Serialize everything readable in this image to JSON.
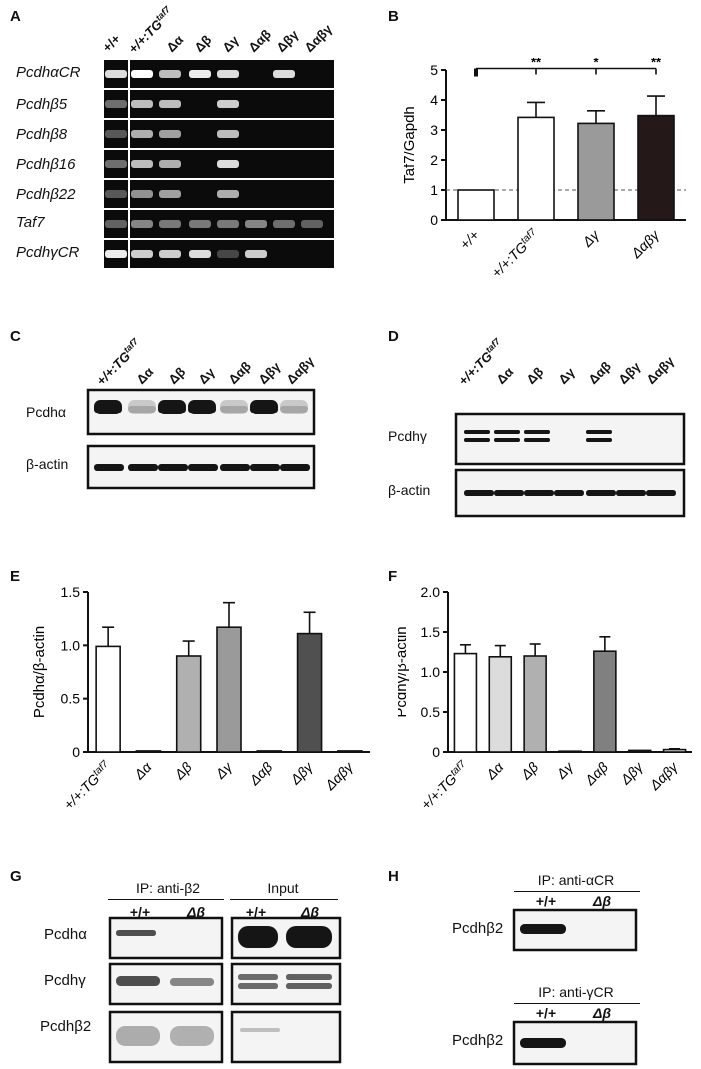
{
  "panel_letters": {
    "a": "A",
    "b": "B",
    "c": "C",
    "d": "D",
    "e": "E",
    "f": "F",
    "g": "G",
    "h": "H"
  },
  "gel_A": {
    "lanes": [
      "+/+",
      "+/+:TG",
      "Δα",
      "Δβ",
      "Δγ",
      "Δαβ",
      "Δβγ",
      "Δαβγ"
    ],
    "tg_sup": "taf7",
    "rows": [
      "PcdhαCR",
      "Pcdhβ5",
      "Pcdhβ8",
      "Pcdhβ16",
      "Pcdhβ22",
      "Taf7",
      "PcdhγCR"
    ],
    "band_intensity": [
      [
        0.9,
        1,
        0.8,
        0.95,
        0.9,
        0,
        0.9,
        0
      ],
      [
        0.5,
        0.8,
        0.8,
        0,
        0.85,
        0,
        0,
        0
      ],
      [
        0.4,
        0.75,
        0.7,
        0,
        0.8,
        0,
        0,
        0
      ],
      [
        0.5,
        0.8,
        0.75,
        0,
        0.9,
        0,
        0,
        0
      ],
      [
        0.4,
        0.65,
        0.7,
        0,
        0.75,
        0,
        0,
        0
      ],
      [
        0.45,
        0.6,
        0.55,
        0.55,
        0.55,
        0.6,
        0.5,
        0.45
      ],
      [
        0.95,
        0.85,
        0.85,
        0.9,
        0.3,
        0.85,
        0,
        0
      ]
    ]
  },
  "chart_data": [
    {
      "type": "bar",
      "panel": "B",
      "categories": [
        "+/+",
        "+/+:TG",
        "Δγ",
        "Δαβγ"
      ],
      "tg_sup": "taf7",
      "values": [
        1.0,
        3.42,
        3.22,
        3.48
      ],
      "errors": [
        0.0,
        0.5,
        0.42,
        0.65
      ],
      "colors": [
        "#ffffff",
        "#ffffff",
        "#9a9a9a",
        "#241818"
      ],
      "ylabel": "Taf7/Gapdh",
      "ylim": [
        0,
        5
      ],
      "yticks": [
        "0",
        "1",
        "2",
        "3",
        "4",
        "5"
      ],
      "reference_line": 1,
      "significance": [
        "**",
        "*",
        "**"
      ]
    },
    {
      "type": "bar",
      "panel": "E",
      "categories": [
        "+/+:TG",
        "Δα",
        "Δβ",
        "Δγ",
        "Δαβ",
        "Δβγ",
        "Δαβγ"
      ],
      "tg_sup": "taf7",
      "values": [
        0.99,
        0.01,
        0.9,
        1.17,
        0.01,
        1.11,
        0.01
      ],
      "errors": [
        0.18,
        0.0,
        0.14,
        0.23,
        0.0,
        0.2,
        0.0
      ],
      "colors": [
        "#ffffff",
        "#ffffff",
        "#b0b0b0",
        "#9a9a9a",
        "#ffffff",
        "#505050",
        "#ffffff"
      ],
      "ylabel": "Pcdhα/β-actin",
      "ylim": [
        0,
        1.5
      ],
      "yticks": [
        "0",
        "0.5",
        "1.0",
        "1.5"
      ]
    },
    {
      "type": "bar",
      "panel": "F",
      "categories": [
        "+/+:TG",
        "Δα",
        "Δβ",
        "Δγ",
        "Δαβ",
        "Δβγ",
        "Δαβγ"
      ],
      "tg_sup": "taf7",
      "values": [
        1.23,
        1.19,
        1.2,
        0.01,
        1.26,
        0.02,
        0.03
      ],
      "errors": [
        0.11,
        0.14,
        0.15,
        0.0,
        0.18,
        0.0,
        0.01
      ],
      "colors": [
        "#ffffff",
        "#dcdcdc",
        "#b0b0b0",
        "#ffffff",
        "#808080",
        "#ffffff",
        "#ffffff"
      ],
      "ylabel": "Pcdhγ/β-actin",
      "ylim": [
        0,
        2.0
      ],
      "yticks": [
        "0",
        "0.5",
        "1.0",
        "1.5",
        "2.0"
      ]
    }
  ],
  "blot_C": {
    "lanes": [
      "+/+:TG",
      "Δα",
      "Δβ",
      "Δγ",
      "Δαβ",
      "Δβγ",
      "Δαβγ"
    ],
    "tg_sup": "taf7",
    "rows": [
      "Pcdhα",
      "β-actin"
    ],
    "band_intensity": [
      [
        1,
        0.05,
        1,
        1,
        0.05,
        1,
        0.05
      ],
      [
        1,
        1,
        1,
        1,
        1,
        1,
        1
      ]
    ]
  },
  "blot_D": {
    "lanes": [
      "+/+:TG",
      "Δα",
      "Δβ",
      "Δγ",
      "Δαβ",
      "Δβγ",
      "Δαβγ"
    ],
    "tg_sup": "taf7",
    "rows": [
      "Pcdhγ",
      "β-actin"
    ],
    "band_intensity": [
      [
        1,
        1,
        1,
        0,
        1,
        0,
        0
      ],
      [
        1,
        1,
        1,
        1,
        1,
        1,
        1
      ]
    ]
  },
  "blot_G": {
    "group_ip": "IP: anti-β2",
    "group_input": "Input",
    "lanes": [
      "+/+",
      "Δβ",
      "+/+",
      "Δβ"
    ],
    "rows": [
      "Pcdhα",
      "Pcdhγ",
      "Pcdhβ2"
    ]
  },
  "blot_H": {
    "ip_alpha": "IP: anti-αCR",
    "ip_gamma": "IP: anti-γCR",
    "lanes": [
      "+/+",
      "Δβ"
    ],
    "row": "Pcdhβ2"
  }
}
